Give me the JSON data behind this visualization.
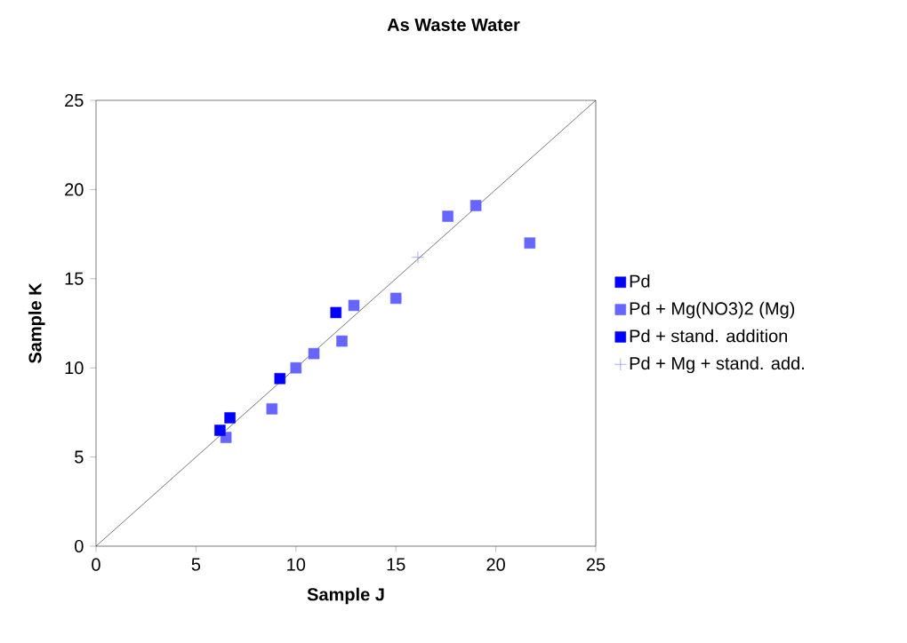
{
  "chart_data": {
    "type": "scatter",
    "title": "As Waste Water",
    "xlabel": "Sample J",
    "ylabel": "Sample K",
    "xlim": [
      0,
      25
    ],
    "ylim": [
      0,
      25
    ],
    "xticks": [
      0,
      5,
      10,
      15,
      20,
      25
    ],
    "yticks": [
      0,
      5,
      10,
      15,
      20,
      25
    ],
    "grid": false,
    "legend": "right",
    "series": [
      {
        "name": "Pd",
        "color": "#0000ff",
        "marker": "square",
        "x": [
          12.0,
          9.2,
          6.7
        ],
        "values": [
          13.1,
          9.4,
          7.2
        ]
      },
      {
        "name": "Pd + Mg(NO3)2 (Mg)",
        "color": "#6666ff",
        "marker": "square",
        "x": [
          6.5,
          8.8,
          10.0,
          10.9,
          12.3,
          12.9,
          15.0,
          17.6,
          19.0,
          21.7
        ],
        "values": [
          6.1,
          7.7,
          10.0,
          10.8,
          11.5,
          13.5,
          13.9,
          18.5,
          19.1,
          17.0
        ]
      },
      {
        "name": "Pd + stand. addition",
        "color": "#0000ff",
        "marker": "square",
        "x": [
          6.2
        ],
        "values": [
          6.5
        ]
      },
      {
        "name": "Pd + Mg + stand. add.",
        "color": "#6666ff",
        "marker": "cross",
        "x": [
          16.1
        ],
        "values": [
          16.2
        ]
      },
      {
        "type": "line",
        "color": "#000000",
        "marker": "none",
        "x": [
          0,
          25
        ],
        "values": [
          0,
          25
        ]
      }
    ]
  }
}
